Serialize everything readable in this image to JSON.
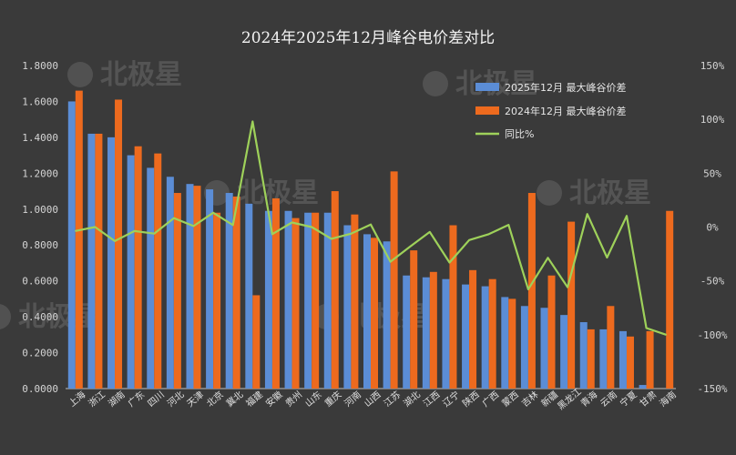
{
  "chart_data": {
    "type": "bar",
    "title": "2024年2025年12月峰谷电价差对比",
    "categories": [
      "上海",
      "浙江",
      "湖南",
      "广东",
      "四川",
      "河北",
      "天津",
      "北京",
      "冀北",
      "福建",
      "安徽",
      "贵州",
      "山东",
      "重庆",
      "河南",
      "山西",
      "江苏",
      "湖北",
      "江西",
      "辽宁",
      "陕西",
      "广西",
      "蒙西",
      "吉林",
      "新疆",
      "黑龙江",
      "青海",
      "云南",
      "宁夏",
      "甘肃",
      "海南"
    ],
    "series": [
      {
        "name": "2025年12月 最大峰谷价差",
        "color": "#5b8dd6",
        "values": [
          1.6,
          1.42,
          1.4,
          1.3,
          1.23,
          1.18,
          1.14,
          1.11,
          1.09,
          1.03,
          0.99,
          0.99,
          0.98,
          0.98,
          0.91,
          0.86,
          0.82,
          0.63,
          0.62,
          0.61,
          0.58,
          0.57,
          0.51,
          0.46,
          0.45,
          0.41,
          0.37,
          0.33,
          0.32,
          0.02,
          0.0
        ]
      },
      {
        "name": "2024年12月 最大峰谷价差",
        "color": "#ed6a1e",
        "values": [
          1.66,
          1.42,
          1.61,
          1.35,
          1.31,
          1.09,
          1.13,
          0.98,
          1.07,
          0.52,
          1.06,
          0.95,
          0.98,
          1.1,
          0.97,
          0.84,
          1.21,
          0.77,
          0.65,
          0.91,
          0.66,
          0.61,
          0.5,
          1.09,
          0.63,
          0.93,
          0.33,
          0.46,
          0.29,
          0.32,
          0.99
        ]
      },
      {
        "name": "同比%",
        "color": "#9ed15a",
        "axis": "right",
        "values": [
          -3.6,
          0,
          -13,
          -3.7,
          -6.1,
          8.3,
          0.9,
          13.3,
          1.9,
          98,
          -6.6,
          4.2,
          0,
          -10.9,
          -6.2,
          2.4,
          -32.2,
          -18.2,
          -4.6,
          -33,
          -12.1,
          -6.6,
          2,
          -57.8,
          -28.6,
          -55.9,
          12.1,
          -28.3,
          10.3,
          -93.8,
          -100
        ]
      }
    ],
    "y_left": {
      "min": 0,
      "max": 1.8,
      "step": 0.2,
      "ticks": [
        "0.0000",
        "0.2000",
        "0.4000",
        "0.6000",
        "0.8000",
        "1.0000",
        "1.2000",
        "1.4000",
        "1.6000",
        "1.8000"
      ]
    },
    "y_right": {
      "min": -150,
      "max": 150,
      "step": 50,
      "ticks": [
        "-150%",
        "-100%",
        "-50%",
        "0%",
        "50%",
        "100%",
        "150%"
      ]
    },
    "legend": {
      "position": "top-right"
    },
    "grid": false
  },
  "watermark": {
    "text": "北极星"
  },
  "colors": {
    "background": "#3a3a3a",
    "axis": "#bfbfbf"
  }
}
